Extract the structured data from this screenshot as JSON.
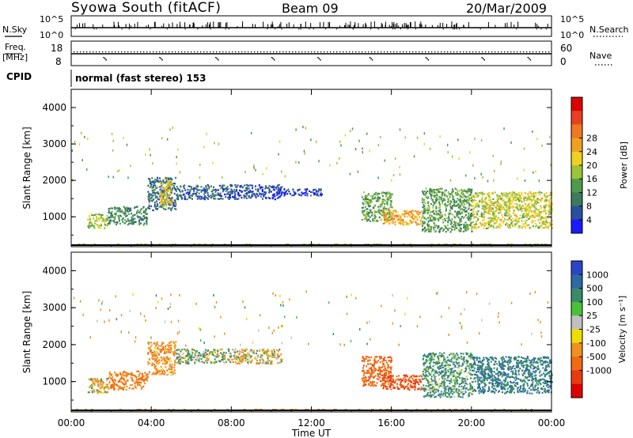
{
  "header": {
    "station": "Syowa South (fitACF)",
    "beam": "Beam 09",
    "date": "20/Mar/2009"
  },
  "sky_panel": {
    "left_label": "N.Sky",
    "right_label": "N.Search",
    "tick_hi": "10^5",
    "tick_lo": "10^0"
  },
  "freq_panel": {
    "left_label_1": "Freq.",
    "left_label_2": "[MHz]",
    "tick_hi": "18",
    "tick_lo": "8",
    "right_label": "Nave",
    "rtick_hi": "60",
    "rtick_lo": "0"
  },
  "cpid": {
    "label": "CPID",
    "mode": "normal (fast stereo) 153"
  },
  "colors": {
    "power_scale": [
      "#1a1aff",
      "#2b4fa0",
      "#3d7a5c",
      "#4f9a4f",
      "#9ac43a",
      "#f0d020",
      "#f0a020",
      "#f07820",
      "#e84020",
      "#dd0000"
    ],
    "velocity_scale": [
      "#2b44c8",
      "#2d6aa0",
      "#3a8a6a",
      "#4bbf3a",
      "#c0c0c0",
      "#eedd00",
      "#f09020",
      "#f06a10",
      "#e83c10",
      "#dd0000"
    ]
  },
  "chart_data": [
    {
      "type": "heatmap",
      "name": "power",
      "ylabel": "Slant Range [km]",
      "ylim": [
        180,
        4500
      ],
      "yticks": [
        "1000",
        "2000",
        "3000",
        "4000"
      ],
      "xlim": [
        0,
        24
      ],
      "colorbar_label": "Power [dB]",
      "colorbar_range": [
        0,
        32
      ],
      "colorbar_ticks": [
        "4",
        "8",
        "12",
        "16",
        "20",
        "24",
        "28"
      ],
      "regions": [
        {
          "t0": 0.8,
          "t1": 1.8,
          "r0": 700,
          "r1": 1100,
          "v": 14
        },
        {
          "t0": 1.8,
          "t1": 3.8,
          "r0": 800,
          "r1": 1300,
          "v": 9
        },
        {
          "t0": 3.8,
          "t1": 5.2,
          "r0": 1200,
          "r1": 2100,
          "v": 7
        },
        {
          "t0": 4.4,
          "t1": 5.0,
          "r0": 1300,
          "r1": 2000,
          "v": 18
        },
        {
          "t0": 5.2,
          "t1": 8.0,
          "r0": 1500,
          "r1": 1900,
          "v": 6
        },
        {
          "t0": 8.0,
          "t1": 10.5,
          "r0": 1500,
          "r1": 1900,
          "v": 5
        },
        {
          "t0": 10.5,
          "t1": 12.5,
          "r0": 1600,
          "r1": 1800,
          "v": 4
        },
        {
          "t0": 14.5,
          "t1": 16.0,
          "r0": 900,
          "r1": 1700,
          "v": 12
        },
        {
          "t0": 15.5,
          "t1": 17.5,
          "r0": 800,
          "r1": 1200,
          "v": 21
        },
        {
          "t0": 17.5,
          "t1": 20.0,
          "r0": 600,
          "r1": 1800,
          "v": 11
        },
        {
          "t0": 20.0,
          "t1": 24.0,
          "r0": 700,
          "r1": 1700,
          "v": 16
        }
      ]
    },
    {
      "type": "heatmap",
      "name": "velocity",
      "ylabel": "Slant Range [km]",
      "ylim": [
        180,
        4500
      ],
      "yticks": [
        "1000",
        "2000",
        "3000",
        "4000"
      ],
      "xlim": [
        0,
        24
      ],
      "xlabel": "Time UT",
      "xticks": [
        "00:00",
        "04:00",
        "08:00",
        "12:00",
        "16:00",
        "20:00",
        "00:00"
      ],
      "colorbar_label": "Velocity [m s⁻¹]",
      "colorbar_ticks": [
        "1000",
        "500",
        "100",
        "25",
        "-25",
        "-100",
        "-500",
        "-1000"
      ],
      "regions": [
        {
          "t0": 0.8,
          "t1": 1.8,
          "r0": 700,
          "r1": 1100,
          "v": -100
        },
        {
          "t0": 1.8,
          "t1": 3.8,
          "r0": 800,
          "r1": 1300,
          "v": -300
        },
        {
          "t0": 3.8,
          "t1": 5.2,
          "r0": 1200,
          "r1": 2100,
          "v": -200
        },
        {
          "t0": 5.2,
          "t1": 8.0,
          "r0": 1500,
          "r1": 1900,
          "v": 60
        },
        {
          "t0": 8.0,
          "t1": 10.5,
          "r0": 1500,
          "r1": 1900,
          "v": -80
        },
        {
          "t0": 14.5,
          "t1": 16.0,
          "r0": 900,
          "r1": 1700,
          "v": -600
        },
        {
          "t0": 15.5,
          "t1": 17.5,
          "r0": 800,
          "r1": 1200,
          "v": -800
        },
        {
          "t0": 17.5,
          "t1": 20.0,
          "r0": 600,
          "r1": 1800,
          "v": 150
        },
        {
          "t0": 20.0,
          "t1": 24.0,
          "r0": 700,
          "r1": 1700,
          "v": 300
        }
      ]
    }
  ]
}
